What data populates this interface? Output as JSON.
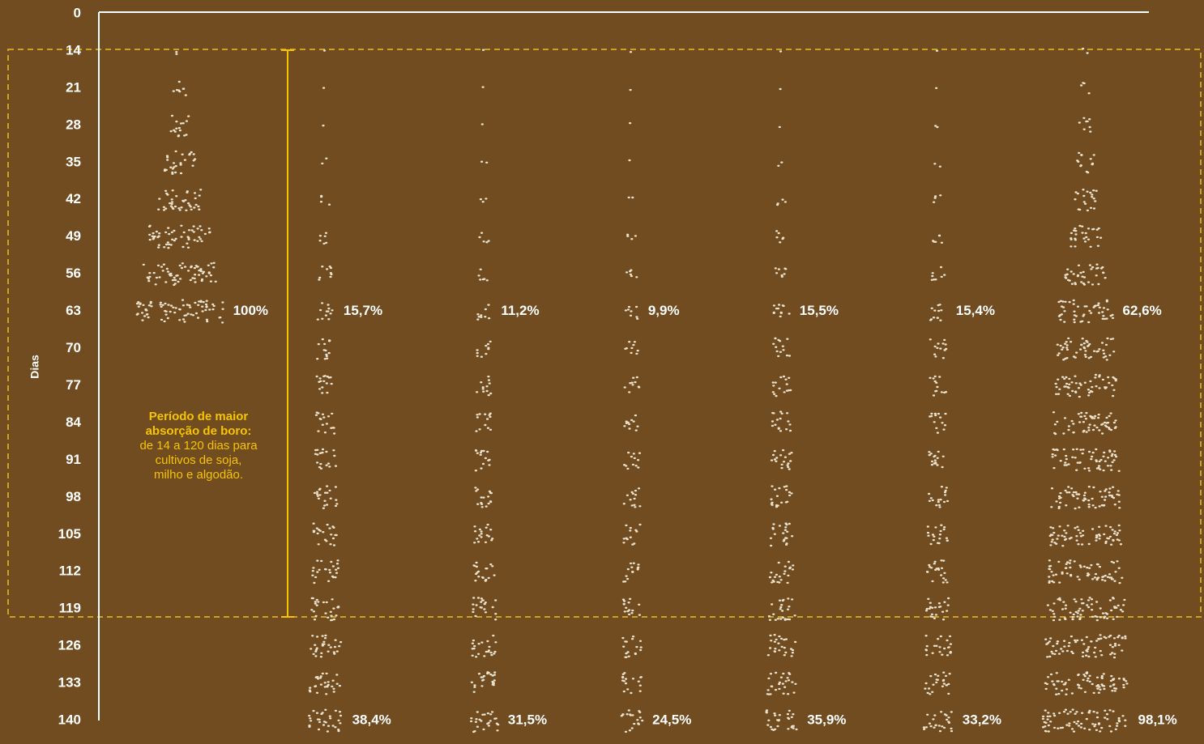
{
  "chart_data": {
    "type": "cluster",
    "ylabel": "Dias",
    "categories": [
      "0",
      "14",
      "21",
      "28",
      "35",
      "42",
      "49",
      "56",
      "63",
      "70",
      "77",
      "84",
      "91",
      "98",
      "105",
      "112",
      "119",
      "126",
      "133",
      "140"
    ],
    "color": "#ece3cf",
    "annotation": {
      "title": [
        "Período de maior",
        "absorção de boro:"
      ],
      "text": [
        "de 14 a 120 dias para",
        "cultivos de soja,",
        "milho e algodão."
      ]
    },
    "series": [
      {
        "values": [
          null,
          3,
          10,
          20,
          35,
          50,
          70,
          85,
          100,
          null,
          null,
          null,
          null,
          null,
          null,
          null,
          null,
          null,
          null,
          null
        ],
        "value_labels": [
          null,
          null,
          null,
          null,
          null,
          null,
          null,
          null,
          "100%",
          null,
          null,
          null,
          null,
          null,
          null,
          null,
          null,
          null,
          null,
          null
        ]
      },
      {
        "values": [
          null,
          0.3,
          1,
          1.5,
          3,
          5,
          8,
          11,
          15.7,
          18,
          20,
          22,
          24,
          26,
          28,
          30,
          33,
          35,
          37,
          38.4
        ],
        "value_labels": [
          null,
          null,
          null,
          null,
          null,
          null,
          null,
          null,
          "15,7%",
          null,
          null,
          null,
          null,
          null,
          null,
          null,
          null,
          null,
          null,
          "38,4%"
        ]
      },
      {
        "values": [
          null,
          0.3,
          0.6,
          1.2,
          2,
          3.5,
          6,
          8,
          11.2,
          13,
          15,
          17,
          19,
          21,
          23,
          25,
          27,
          28,
          30,
          31.5
        ],
        "value_labels": [
          null,
          null,
          null,
          null,
          null,
          null,
          null,
          null,
          "11,2%",
          null,
          null,
          null,
          null,
          null,
          null,
          null,
          null,
          null,
          null,
          "31,5%"
        ]
      },
      {
        "values": [
          null,
          0.3,
          0.6,
          1,
          1.5,
          2.5,
          5,
          7,
          9.9,
          11,
          13,
          14,
          15,
          16,
          17,
          18,
          19,
          21,
          22,
          24.5
        ],
        "value_labels": [
          null,
          null,
          null,
          null,
          null,
          null,
          null,
          null,
          "9,9%",
          null,
          null,
          null,
          null,
          null,
          null,
          null,
          null,
          null,
          null,
          "24,5%"
        ]
      },
      {
        "values": [
          null,
          0.3,
          0.6,
          1.2,
          3,
          5,
          7,
          10,
          15.5,
          18,
          20,
          22,
          24,
          25,
          26,
          28,
          30,
          32,
          34,
          35.9
        ],
        "value_labels": [
          null,
          null,
          null,
          null,
          null,
          null,
          null,
          null,
          "15,5%",
          null,
          null,
          null,
          null,
          null,
          null,
          null,
          null,
          null,
          null,
          "35,9%"
        ]
      },
      {
        "values": [
          null,
          0.3,
          1,
          2,
          3,
          5,
          7,
          10,
          15.4,
          16,
          17,
          18,
          20,
          22,
          24,
          26,
          28,
          29,
          31,
          33.2
        ],
        "value_labels": [
          null,
          null,
          null,
          null,
          null,
          null,
          null,
          null,
          "15,4%",
          null,
          null,
          null,
          null,
          null,
          null,
          null,
          null,
          null,
          null,
          "33,2%"
        ]
      },
      {
        "values": [
          null,
          2,
          5,
          10,
          18,
          25,
          35,
          48,
          62.6,
          66,
          70,
          74,
          77,
          80,
          83,
          86,
          90,
          93,
          96,
          98.1
        ],
        "value_labels": [
          null,
          null,
          null,
          null,
          null,
          null,
          null,
          null,
          "62,6%",
          null,
          null,
          null,
          null,
          null,
          null,
          null,
          null,
          null,
          null,
          "98,1%"
        ]
      }
    ]
  }
}
